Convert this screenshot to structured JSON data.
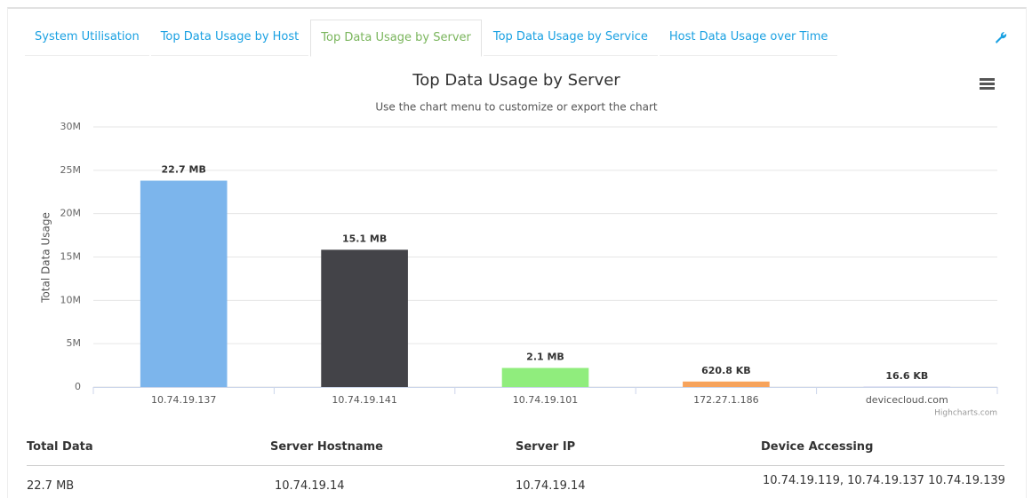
{
  "tabs": [
    "System Utilisation",
    "Top Data Usage by Host",
    "Top Data Usage by Server",
    "Top Data Usage by Service",
    "Host Data Usage over Time"
  ],
  "chart_data": {
    "type": "bar",
    "title": "Top Data Usage by Server",
    "subtitle": "Use the chart menu to customize or export the chart",
    "y_label": "Total Data Usage",
    "categories": [
      "10.74.19.137",
      "10.74.19.141",
      "10.74.19.101",
      "172.27.1.186",
      "devicecloud.com"
    ],
    "values": [
      23802675,
      15833498,
      2202010,
      635699,
      16998
    ],
    "value_labels": [
      "22.7 MB",
      "15.1 MB",
      "2.1 MB",
      "620.8 KB",
      "16.6 KB"
    ],
    "colors": [
      "#7cb5ec",
      "#434348",
      "#90ed7d",
      "#f7a35c",
      "#8085e9"
    ],
    "ylim": [
      0,
      30000000
    ],
    "yticks": [
      0,
      {
        "value": 5000000,
        "label": "5M"
      },
      {
        "value": 10000000,
        "label": "10M"
      },
      {
        "value": 15000000,
        "label": "15M"
      },
      {
        "value": 20000000,
        "label": "20M"
      },
      {
        "value": 25000000,
        "label": "25M"
      },
      {
        "value": 30000000,
        "label": "30M"
      }
    ],
    "grid": true,
    "credits": "Highcharts.com"
  },
  "table": {
    "headers": [
      "Total Data",
      "Server Hostname",
      "Server IP",
      "Device Accessing"
    ],
    "rows": [
      [
        "22.7 MB",
        "10.74.19.14",
        "10.74.19.14",
        "10.74.19.119, 10.74.19.137  10.74.19.139"
      ]
    ]
  }
}
